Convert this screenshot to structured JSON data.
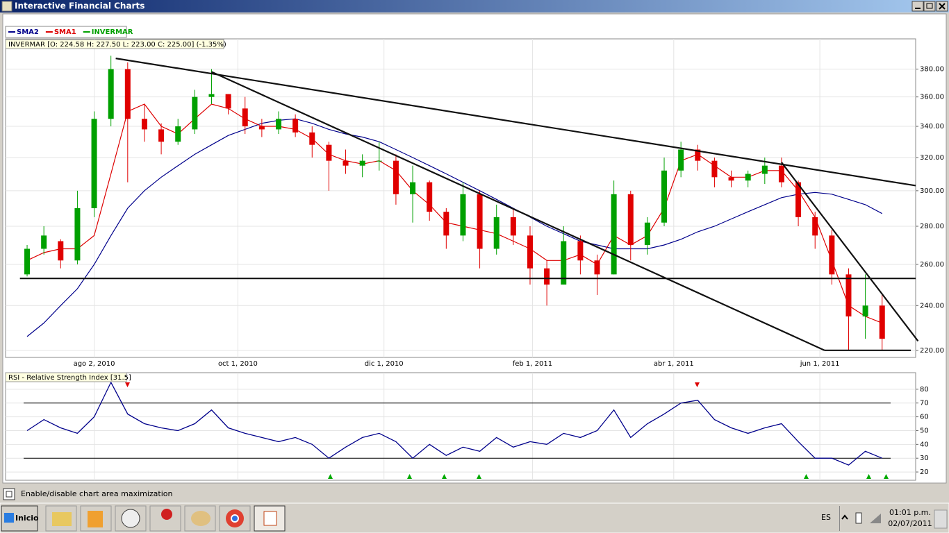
{
  "window": {
    "title": "Interactive Financial Charts"
  },
  "chart_data": [
    {
      "type": "candlestick",
      "info_label": "INVERMAR [O: 224.58  H: 227.50  L: 223.00  C: 225.00] (-1.35%)",
      "x": [
        "2010-07-05",
        "2010-07-12",
        "2010-07-19",
        "2010-07-26",
        "2010-08-02",
        "2010-08-09",
        "2010-08-16",
        "2010-08-23",
        "2010-08-30",
        "2010-09-06",
        "2010-09-13",
        "2010-09-20",
        "2010-09-27",
        "2010-10-04",
        "2010-10-11",
        "2010-10-18",
        "2010-10-25",
        "2010-11-01",
        "2010-11-08",
        "2010-11-15",
        "2010-11-22",
        "2010-11-29",
        "2010-12-06",
        "2010-12-13",
        "2010-12-20",
        "2010-12-27",
        "2011-01-03",
        "2011-01-10",
        "2011-01-17",
        "2011-01-24",
        "2011-01-31",
        "2011-02-07",
        "2011-02-14",
        "2011-02-21",
        "2011-02-28",
        "2011-03-07",
        "2011-03-14",
        "2011-03-21",
        "2011-03-28",
        "2011-04-04",
        "2011-04-11",
        "2011-04-18",
        "2011-04-25",
        "2011-05-02",
        "2011-05-09",
        "2011-05-16",
        "2011-05-23",
        "2011-05-30",
        "2011-06-06",
        "2011-06-13",
        "2011-06-20",
        "2011-06-27"
      ],
      "ohlc": {
        "name": "INVERMAR",
        "up_color": "#00a000",
        "down_color": "#e00000",
        "open": [
          255,
          268,
          272,
          262,
          290,
          345,
          380,
          345,
          338,
          330,
          338,
          360,
          362,
          352,
          340,
          338,
          345,
          336,
          328,
          318,
          315,
          318,
          318,
          298,
          305,
          288,
          275,
          298,
          268,
          285,
          275,
          258,
          250,
          272,
          262,
          255,
          298,
          270,
          282,
          312,
          325,
          318,
          308,
          306,
          310,
          315,
          305,
          285,
          275,
          255,
          235,
          240
        ],
        "high": [
          270,
          280,
          273,
          300,
          350,
          390,
          385,
          355,
          342,
          345,
          365,
          380,
          362,
          360,
          345,
          350,
          348,
          340,
          330,
          325,
          322,
          330,
          322,
          315,
          306,
          290,
          305,
          300,
          292,
          290,
          280,
          262,
          280,
          275,
          265,
          306,
          300,
          285,
          320,
          330,
          328,
          320,
          312,
          312,
          320,
          320,
          306,
          288,
          278,
          258,
          255,
          245
        ],
        "low": [
          254,
          265,
          258,
          260,
          285,
          340,
          305,
          330,
          322,
          328,
          335,
          355,
          348,
          335,
          333,
          335,
          333,
          320,
          300,
          310,
          308,
          312,
          292,
          282,
          283,
          268,
          272,
          258,
          265,
          270,
          250,
          240,
          250,
          255,
          245,
          255,
          262,
          265,
          280,
          308,
          312,
          302,
          302,
          302,
          304,
          302,
          280,
          268,
          250,
          220,
          225,
          220
        ],
        "close": [
          268,
          275,
          262,
          290,
          345,
          380,
          345,
          338,
          330,
          340,
          360,
          362,
          352,
          340,
          338,
          345,
          336,
          328,
          318,
          315,
          318,
          318,
          298,
          305,
          288,
          275,
          298,
          268,
          285,
          275,
          258,
          250,
          272,
          262,
          255,
          298,
          270,
          282,
          312,
          325,
          318,
          308,
          306,
          310,
          315,
          305,
          285,
          275,
          255,
          235,
          240,
          225
        ]
      },
      "series": [
        {
          "name": "SMA2",
          "color": "#00008b",
          "values": [
            226,
            232,
            240,
            248,
            260,
            275,
            290,
            300,
            308,
            315,
            322,
            328,
            334,
            338,
            342,
            344,
            345,
            342,
            338,
            335,
            333,
            330,
            325,
            320,
            315,
            310,
            305,
            300,
            295,
            290,
            285,
            280,
            276,
            272,
            270,
            268,
            268,
            268,
            270,
            273,
            277,
            280,
            284,
            288,
            292,
            296,
            298,
            299,
            298,
            295,
            292,
            287
          ]
        },
        {
          "name": "SMA1",
          "color": "#dd0000",
          "values": [
            262,
            266,
            268,
            268,
            275,
            310,
            350,
            355,
            340,
            335,
            345,
            355,
            352,
            345,
            340,
            340,
            338,
            332,
            322,
            318,
            316,
            318,
            312,
            300,
            292,
            282,
            280,
            278,
            276,
            272,
            268,
            262,
            262,
            265,
            260,
            275,
            270,
            275,
            290,
            318,
            322,
            315,
            308,
            308,
            312,
            312,
            300,
            285,
            262,
            240,
            235,
            232
          ]
        }
      ],
      "trendlines": [
        {
          "from": [
            "2010-08-11",
            388
          ],
          "to": [
            "2011-07-11",
            303
          ]
        },
        {
          "from": [
            "2010-09-20",
            378
          ],
          "to": [
            "2011-06-03",
            220
          ]
        },
        {
          "from": [
            "2011-05-16",
            317
          ],
          "to": [
            "2011-07-12",
            224
          ]
        },
        {
          "from": [
            "2010-07-02",
            253
          ],
          "to": [
            "2011-07-11",
            253
          ]
        },
        {
          "from": [
            "2011-06-03",
            220
          ],
          "to": [
            "2011-07-09",
            220
          ]
        }
      ],
      "log_scale": true,
      "xlim": [
        "2010-06-26",
        "2011-07-11"
      ],
      "xticks": [
        {
          "value": "2010-08-02",
          "label": "ago 2, 2010"
        },
        {
          "value": "2010-10-01",
          "label": "oct 1, 2010"
        },
        {
          "value": "2010-12-01",
          "label": "dic 1, 2010"
        },
        {
          "value": "2011-02-01",
          "label": "feb 1, 2011"
        },
        {
          "value": "2011-04-01",
          "label": "abr 1, 2011"
        },
        {
          "value": "2011-06-01",
          "label": "jun 1, 2011"
        }
      ],
      "ylim": [
        217,
        403
      ],
      "yticks": [
        {
          "value": 220,
          "label": "220.00"
        },
        {
          "value": 240,
          "label": "240.00"
        },
        {
          "value": 260,
          "label": "260.00"
        },
        {
          "value": 280,
          "label": "280.00"
        },
        {
          "value": 300,
          "label": "300.00"
        },
        {
          "value": 320,
          "label": "320.00"
        },
        {
          "value": 340,
          "label": "340.00"
        },
        {
          "value": 360,
          "label": "360.00"
        },
        {
          "value": 380,
          "label": "380.00"
        }
      ],
      "grid": true
    },
    {
      "type": "line",
      "title": "RSI - Relative Strength Index [31.5]",
      "color": "#00008b",
      "values": [
        50,
        58,
        52,
        48,
        60,
        85,
        62,
        55,
        52,
        50,
        55,
        65,
        52,
        48,
        45,
        42,
        45,
        40,
        30,
        38,
        45,
        48,
        42,
        30,
        40,
        32,
        38,
        35,
        45,
        38,
        42,
        40,
        48,
        45,
        50,
        65,
        45,
        55,
        62,
        70,
        72,
        58,
        52,
        48,
        52,
        55,
        42,
        30,
        30,
        25,
        35,
        30
      ],
      "levels": [
        70,
        30
      ],
      "ylim": [
        14,
        92
      ],
      "yticks": [
        20,
        30,
        40,
        50,
        60,
        70,
        80
      ],
      "grid": true
    }
  ],
  "status_bar": {
    "text": "Enable/disable chart area maximization"
  },
  "taskbar": {
    "start": "Inicio",
    "language": "ES",
    "time": "01:01 p.m.",
    "date": "02/07/2011"
  }
}
